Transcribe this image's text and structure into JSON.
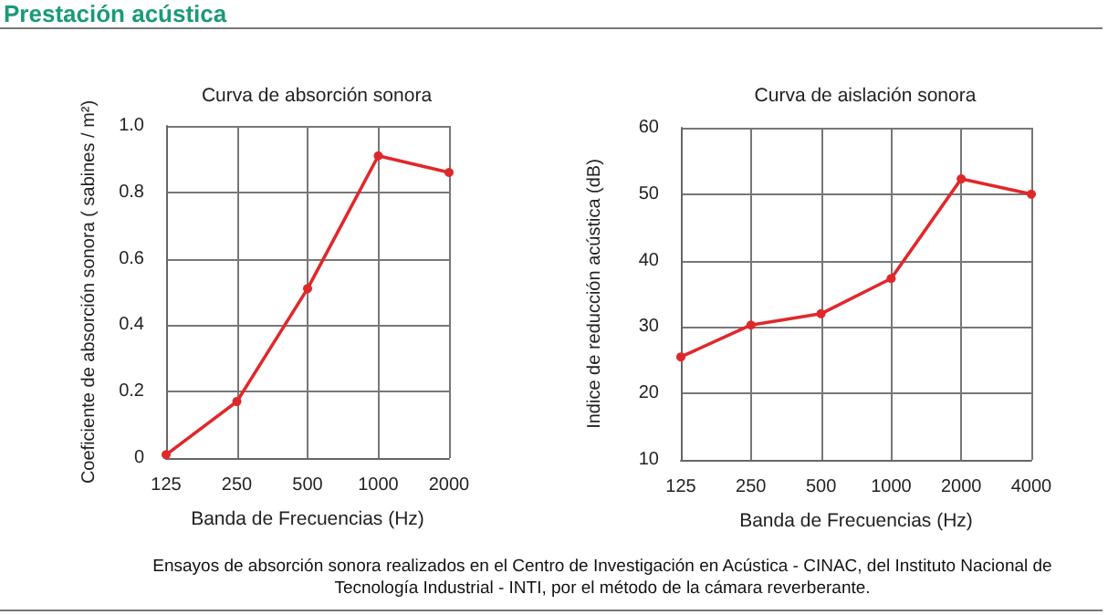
{
  "chart_data": [
    {
      "type": "line",
      "title": "Curva de absorción sonora",
      "xlabel": "Banda de Frecuencias (Hz)",
      "ylabel": "Coeficiente de absorción sonora ( sabines / m²)",
      "annotations": [
        "Prestación acústica"
      ],
      "categories": [
        "125",
        "250",
        "500",
        "1000",
        "2000"
      ],
      "series": [
        {
          "color": "#e0282a",
          "values": [
            0.01,
            0.17,
            0.51,
            0.91,
            0.86
          ]
        }
      ],
      "ylim": [
        0,
        1
      ],
      "yticks": [
        0,
        0.2,
        0.4,
        0.6,
        0.8,
        {
          "value": 1,
          "label": "1.0"
        }
      ],
      "grid": true,
      "marker": "circle",
      "line_style": "solid"
    },
    {
      "type": "line",
      "title": "Curva de aislación sonora",
      "xlabel": "Banda de Frecuencias (Hz)",
      "ylabel": "Indice de reducción acústica (dB)",
      "annotations": [
        "Ensayos de absorción sonora realizados en el Centro de Investigación en Acústica - CINAC, del Instituto Nacional de Tecnología Industrial - INTI, por el método de la cámara reverberante."
      ],
      "categories": [
        "125",
        "250",
        "500",
        "1000",
        "2000",
        "4000"
      ],
      "series": [
        {
          "color": "#e0282a",
          "values": [
            25.5,
            30.3,
            32,
            37.3,
            52.3,
            50
          ]
        }
      ],
      "ylim": [
        10,
        60
      ],
      "yticks": [
        10,
        20,
        30,
        40,
        50,
        60
      ],
      "grid": true,
      "marker": "circle",
      "line_style": "solid"
    }
  ]
}
